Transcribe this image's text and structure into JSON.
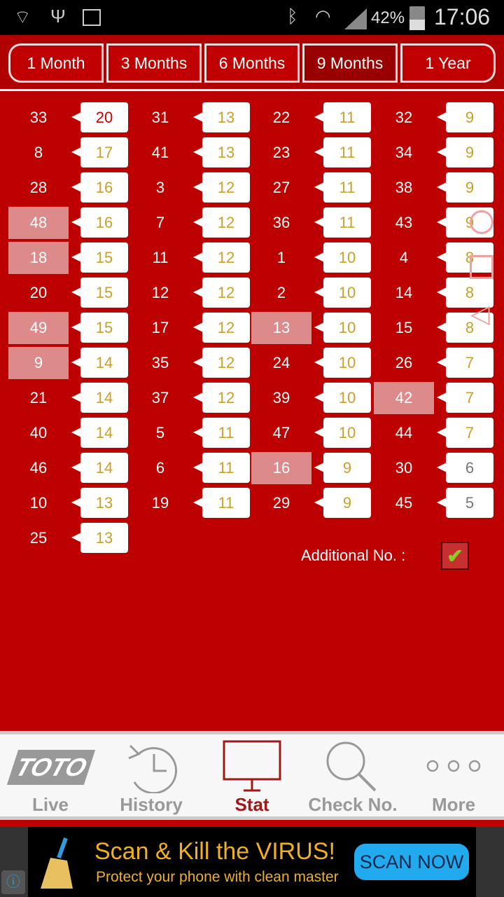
{
  "status_bar": {
    "battery": "42%",
    "time": "17:06",
    "icons": [
      "wifi-question-icon",
      "usb-icon",
      "image-icon",
      "bluetooth-icon",
      "wifi-icon",
      "signal-icon",
      "battery-charging-icon"
    ]
  },
  "tabs": [
    {
      "label": "1 Month"
    },
    {
      "label": "3 Months"
    },
    {
      "label": "6 Months"
    },
    {
      "label": "9 Months",
      "active": true
    },
    {
      "label": "1 Year"
    }
  ],
  "colors": {
    "background": "#bd0000",
    "count_normal": "#c8a02a",
    "count_hot": "#cc0000",
    "count_cold": "#777777",
    "highlight": "#dd8a8a",
    "active_nav": "#a01818"
  },
  "columns": [
    [
      {
        "n": "33",
        "c": "20",
        "tone": "hot"
      },
      {
        "n": "8",
        "c": "17"
      },
      {
        "n": "28",
        "c": "16"
      },
      {
        "n": "48",
        "c": "16",
        "hl": true
      },
      {
        "n": "18",
        "c": "15",
        "hl": true
      },
      {
        "n": "20",
        "c": "15"
      },
      {
        "n": "49",
        "c": "15",
        "hl": true
      },
      {
        "n": "9",
        "c": "14",
        "hl": true
      },
      {
        "n": "21",
        "c": "14"
      },
      {
        "n": "40",
        "c": "14"
      },
      {
        "n": "46",
        "c": "14"
      },
      {
        "n": "10",
        "c": "13"
      },
      {
        "n": "25",
        "c": "13"
      }
    ],
    [
      {
        "n": "31",
        "c": "13"
      },
      {
        "n": "41",
        "c": "13"
      },
      {
        "n": "3",
        "c": "12"
      },
      {
        "n": "7",
        "c": "12"
      },
      {
        "n": "11",
        "c": "12"
      },
      {
        "n": "12",
        "c": "12"
      },
      {
        "n": "17",
        "c": "12"
      },
      {
        "n": "35",
        "c": "12"
      },
      {
        "n": "37",
        "c": "12"
      },
      {
        "n": "5",
        "c": "11"
      },
      {
        "n": "6",
        "c": "11"
      },
      {
        "n": "19",
        "c": "11"
      }
    ],
    [
      {
        "n": "22",
        "c": "11"
      },
      {
        "n": "23",
        "c": "11"
      },
      {
        "n": "27",
        "c": "11"
      },
      {
        "n": "36",
        "c": "11"
      },
      {
        "n": "1",
        "c": "10"
      },
      {
        "n": "2",
        "c": "10"
      },
      {
        "n": "13",
        "c": "10",
        "hl": true
      },
      {
        "n": "24",
        "c": "10"
      },
      {
        "n": "39",
        "c": "10"
      },
      {
        "n": "47",
        "c": "10"
      },
      {
        "n": "16",
        "c": "9",
        "hl": true
      },
      {
        "n": "29",
        "c": "9"
      }
    ],
    [
      {
        "n": "32",
        "c": "9"
      },
      {
        "n": "34",
        "c": "9"
      },
      {
        "n": "38",
        "c": "9"
      },
      {
        "n": "43",
        "c": "9"
      },
      {
        "n": "4",
        "c": "8"
      },
      {
        "n": "14",
        "c": "8"
      },
      {
        "n": "15",
        "c": "8"
      },
      {
        "n": "26",
        "c": "7"
      },
      {
        "n": "42",
        "c": "7",
        "hl": true
      },
      {
        "n": "44",
        "c": "7"
      },
      {
        "n": "30",
        "c": "6",
        "tone": "cold"
      },
      {
        "n": "45",
        "c": "5",
        "tone": "cold"
      }
    ]
  ],
  "additional": {
    "label": "Additional No. :",
    "checked": true
  },
  "nav": [
    {
      "label": "Live",
      "icon": "toto-logo-icon",
      "logo_text": "TOTO"
    },
    {
      "label": "History",
      "icon": "history-icon"
    },
    {
      "label": "Stat",
      "icon": "monitor-icon",
      "active": true
    },
    {
      "label": "Check No.",
      "icon": "search-icon"
    },
    {
      "label": "More",
      "icon": "more-dots-icon"
    }
  ],
  "ad": {
    "headline": "Scan & Kill the VIRUS!",
    "subline": "Protect your phone with clean master",
    "button": "SCAN NOW"
  }
}
